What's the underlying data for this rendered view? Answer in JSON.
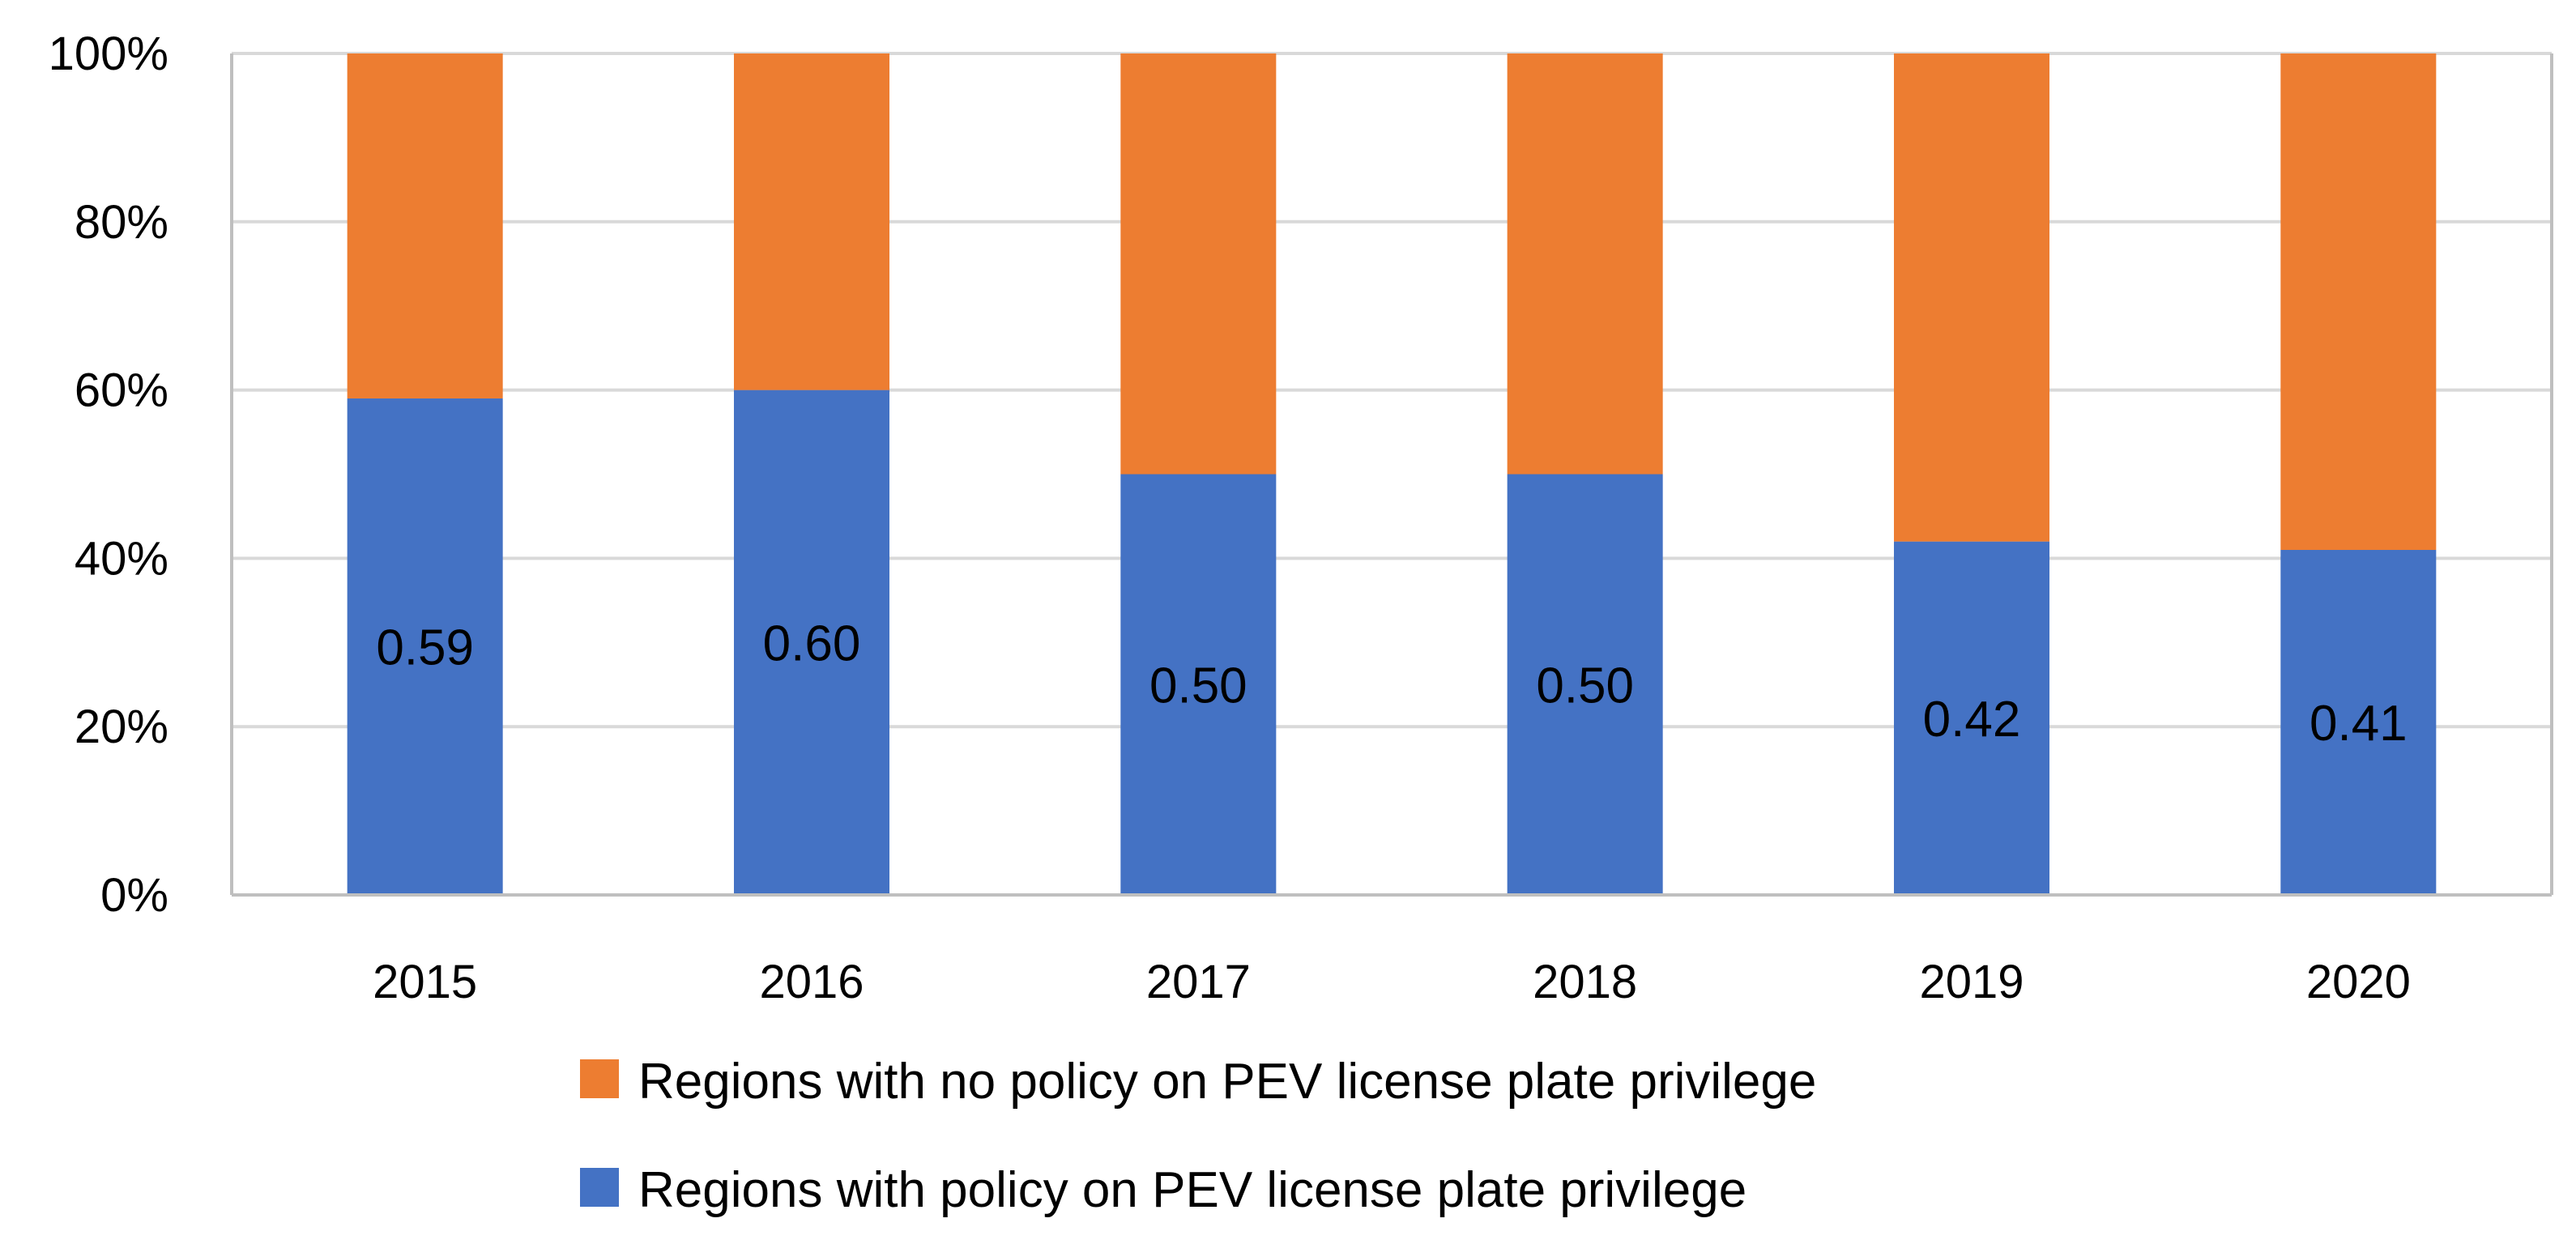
{
  "chart_data": {
    "type": "bar",
    "stacked": true,
    "normalized": true,
    "categories": [
      "2015",
      "2016",
      "2017",
      "2018",
      "2019",
      "2020"
    ],
    "series": [
      {
        "name": "Regions with policy on PEV license plate privilege",
        "color": "#4472C4",
        "values": [
          0.59,
          0.6,
          0.5,
          0.5,
          0.42,
          0.41
        ],
        "labels": [
          "0.59",
          "0.60",
          "0.50",
          "0.50",
          "0.42",
          "0.41"
        ]
      },
      {
        "name": "Regions with no policy on PEV license plate privilege",
        "color": "#ED7D31",
        "values": [
          0.41,
          0.4,
          0.5,
          0.5,
          0.58,
          0.59
        ]
      }
    ],
    "ylim": [
      0,
      1
    ],
    "yticks": [
      "0%",
      "20%",
      "40%",
      "60%",
      "80%",
      "100%"
    ],
    "grid": true,
    "legend_position": "bottom",
    "legend_order": [
      1,
      0
    ]
  }
}
